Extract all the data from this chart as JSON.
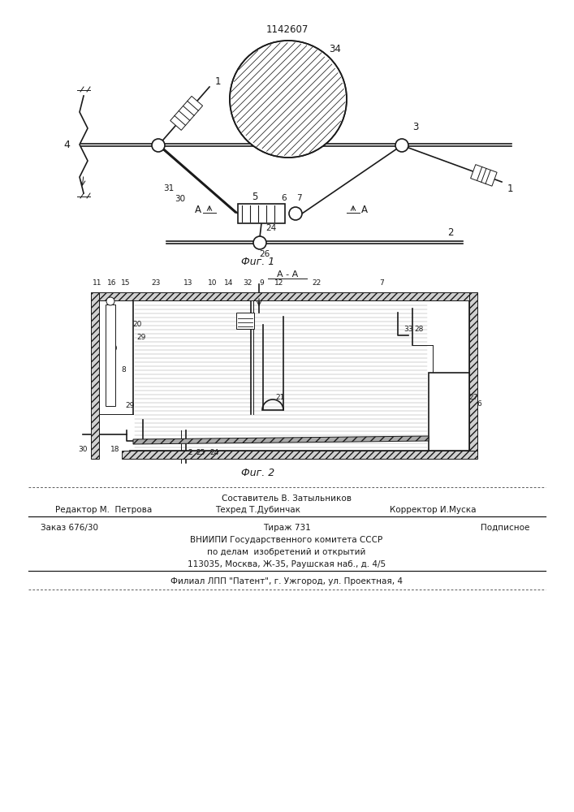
{
  "patent_number": "1142607",
  "fig1_caption": "Фuг. 1",
  "fig2_caption": "Фuг. 2",
  "aa_label": "А - А",
  "footer_line1_center": "Составитель В. Затыльников",
  "footer_line2_left": "Редактор М.  Петрова",
  "footer_line2_center": "Техред Т.Дубинчак",
  "footer_line2_right": "Корректор И.Муска",
  "footer_line3_left": "Заказ 676/30",
  "footer_line3_center": "Тираж 731",
  "footer_line3_right": "Подписное",
  "footer_line4": "ВНИИПИ Государственного комитета СССР",
  "footer_line5": "по делам  изобретений и открытий",
  "footer_line6": "113035, Москва, Ж-35, Раушская наб., д. 4/5",
  "footer_line7": "Филиал ЛПП \"Патент\", г. Ужгород, ул. Проектная, 4",
  "bg_color": "#ffffff",
  "line_color": "#1a1a1a"
}
